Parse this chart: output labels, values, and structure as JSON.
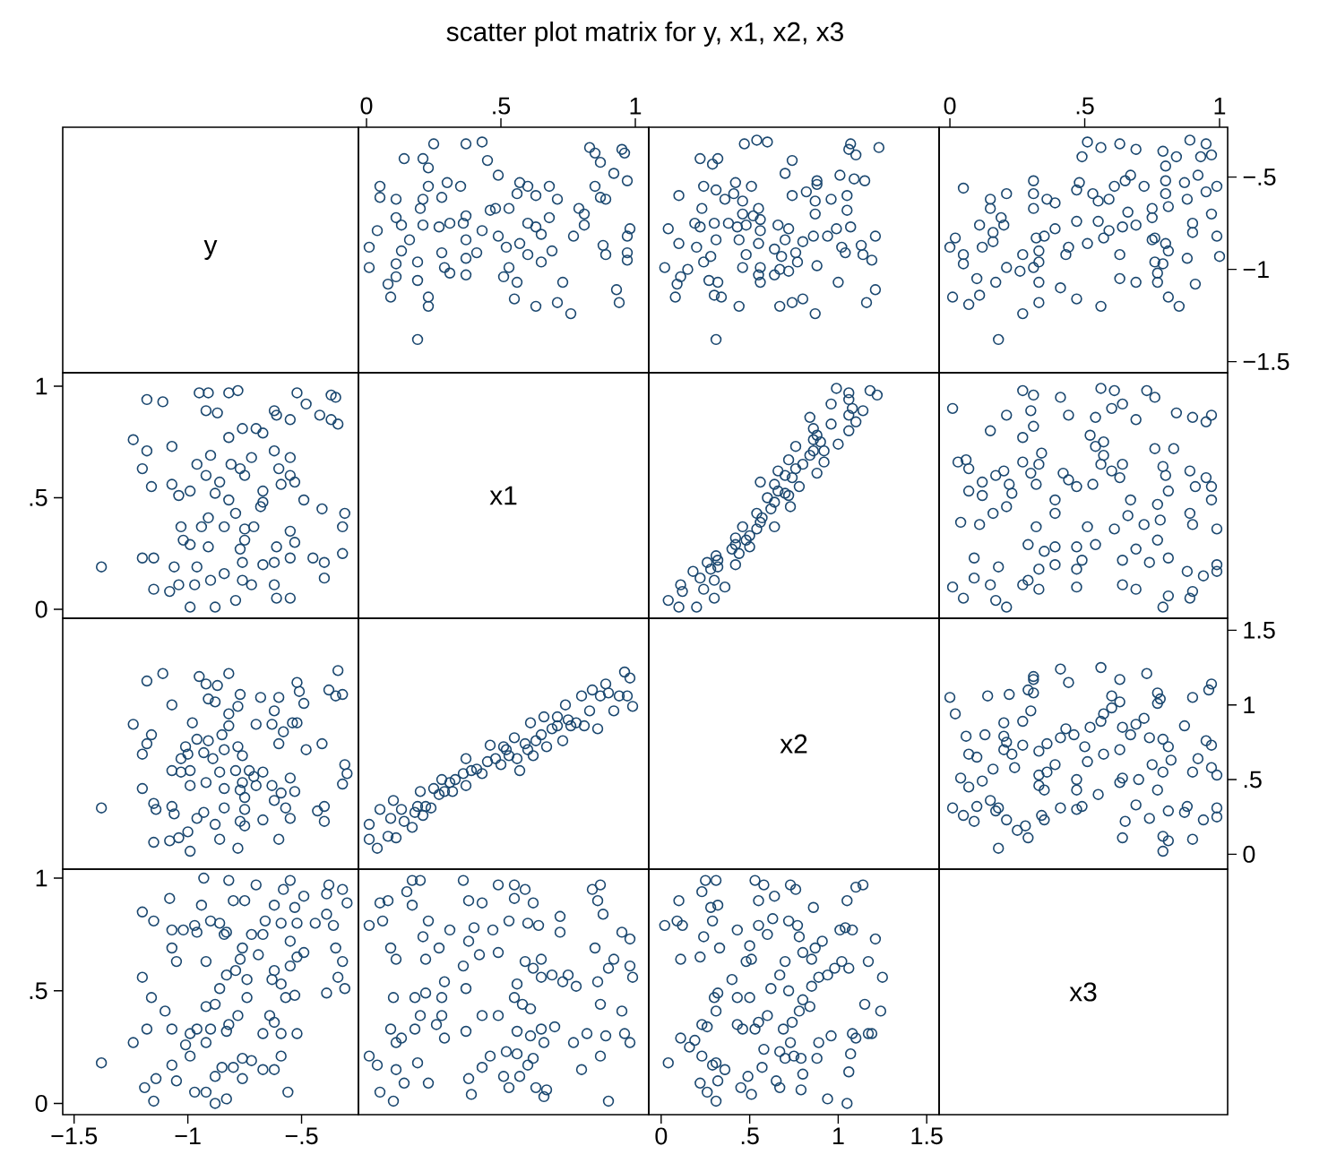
{
  "chart_data": [
    {
      "type": "other",
      "title": "scatter plot matrix for y, x1, x2, x3",
      "annotations": [
        "y"
      ]
    },
    {
      "type": "scatter",
      "marker": "circle",
      "color": "#1a476f",
      "xlim": [
        -0.03,
        1.05
      ],
      "ylim": [
        -1.56,
        -0.23
      ],
      "xticks": [
        0,
        {
          "value": 0.5,
          "label": ".5"
        },
        1
      ],
      "tick_labels": "x",
      "x": [
        0.19,
        0.23,
        0.23,
        0.94,
        0.93,
        0.76,
        0.71,
        0.63,
        0.55,
        0.73,
        0.56,
        0.51,
        0.53,
        0.37,
        0.31,
        0.29,
        0.19,
        0.09,
        0.08,
        0.11,
        0.01,
        0.97,
        0.97,
        0.89,
        0.88,
        0.97,
        0.98,
        0.77,
        0.81,
        0.69,
        0.65,
        0.6,
        0.57,
        0.52,
        0.49,
        0.41,
        0.37,
        0.37,
        0.43,
        0.28,
        0.19,
        0.11,
        0.13,
        0.16,
        0.01,
        0.04,
        0.13,
        0.65,
        0.63,
        0.6,
        0.68,
        0.81,
        0.79,
        0.36,
        0.37,
        0.31,
        0.27,
        0.21,
        0.11,
        0.2,
        0.21,
        0.48,
        0.46,
        0.53,
        0.71,
        0.89,
        0.87,
        0.85,
        0.97,
        0.92,
        0.63,
        0.6,
        0.57,
        0.68,
        0.56,
        0.49,
        0.35,
        0.3,
        0.28,
        0.23,
        0.11,
        0.05,
        0.05,
        0.45,
        0.23,
        0.21,
        0.14,
        0.25,
        0.43,
        0.37,
        0.96,
        0.95,
        0.87,
        0.85,
        0.83
      ],
      "values": [
        -1.38,
        -1.2,
        -1.15,
        -1.18,
        -1.11,
        -1.24,
        -1.18,
        -1.2,
        -1.16,
        -1.07,
        -1.07,
        -1.04,
        -0.99,
        -1.03,
        -1.02,
        -0.99,
        -1.06,
        -1.15,
        -1.08,
        -1.04,
        -0.99,
        -0.95,
        -0.91,
        -0.92,
        -0.87,
        -0.82,
        -0.78,
        -0.82,
        -0.76,
        -0.9,
        -0.96,
        -0.92,
        -0.86,
        -0.88,
        -0.82,
        -0.91,
        -0.94,
        -0.84,
        -0.79,
        -0.91,
        -0.96,
        -0.97,
        -0.9,
        -0.84,
        -0.88,
        -0.79,
        -0.76,
        -0.81,
        -0.77,
        -0.75,
        -0.72,
        -0.7,
        -0.67,
        -0.75,
        -0.71,
        -0.75,
        -0.77,
        -0.76,
        -0.72,
        -0.67,
        -0.62,
        -0.67,
        -0.68,
        -0.67,
        -0.62,
        -0.62,
        -0.61,
        -0.55,
        -0.52,
        -0.48,
        -0.6,
        -0.55,
        -0.53,
        -0.55,
        -0.59,
        -0.49,
        -0.55,
        -0.53,
        -0.61,
        -0.55,
        -0.62,
        -0.61,
        -0.55,
        -0.41,
        -0.45,
        -0.4,
        -0.4,
        -0.32,
        -0.31,
        -0.32,
        -0.37,
        -0.35,
        -0.42,
        -0.37,
        -0.34
      ]
    },
    {
      "type": "scatter",
      "marker": "circle",
      "color": "#1a476f",
      "xlim": [
        -0.07,
        1.57
      ],
      "ylim": [
        -1.56,
        -0.23
      ],
      "tick_labels": false,
      "x": [
        0.31,
        1.16,
        1.21,
        1.0,
        0.87,
        0.8,
        0.74,
        0.67,
        0.44,
        0.34,
        0.3,
        0.32,
        0.27,
        0.08,
        0.09,
        0.11,
        0.02,
        0.15,
        0.88,
        1.19,
        1.14,
        1.13,
        1.04,
        1.02,
        1.21,
        1.07,
        0.99,
        0.94,
        0.86,
        0.8,
        0.76,
        0.77,
        0.72,
        0.67,
        0.64,
        0.56,
        0.55,
        0.56,
        0.68,
        0.64,
        0.7,
        0.72,
        0.66,
        0.56,
        0.55,
        0.48,
        0.46,
        0.44,
        0.48,
        0.56,
        0.52,
        0.43,
        0.38,
        0.55,
        0.46,
        0.46,
        0.41,
        0.51,
        0.42,
        0.36,
        0.31,
        0.24,
        0.23,
        0.3,
        0.31,
        0.19,
        0.22,
        0.2,
        0.24,
        0.28,
        0.1,
        0.04,
        0.1,
        1.05,
        1.05,
        0.96,
        0.87,
        0.87,
        0.74,
        0.88,
        0.88,
        0.82,
        1.15,
        1.09,
        1.01,
        0.74,
        0.7,
        1.1,
        1.23,
        1.06,
        1.07,
        0.6,
        0.54,
        0.47,
        0.29,
        0.32,
        0.22
      ],
      "values": [
        -1.38,
        -1.18,
        -1.11,
        -1.07,
        -1.24,
        -1.16,
        -1.18,
        -1.2,
        -1.2,
        -1.15,
        -1.14,
        -1.07,
        -1.06,
        -1.15,
        -1.08,
        -1.04,
        -0.99,
        -1.0,
        -0.98,
        -0.95,
        -0.92,
        -0.87,
        -0.91,
        -0.88,
        -0.82,
        -0.77,
        -0.78,
        -0.82,
        -0.82,
        -0.85,
        -0.91,
        -0.96,
        -1.01,
        -1.0,
        -1.03,
        -1.07,
        -1.03,
        -0.99,
        -0.93,
        -0.89,
        -0.84,
        -0.78,
        -0.76,
        -0.79,
        -0.86,
        -0.92,
        -0.99,
        -0.84,
        -0.76,
        -0.73,
        -0.71,
        -0.77,
        -0.75,
        -0.67,
        -0.7,
        -0.63,
        -0.59,
        -0.55,
        -0.53,
        -0.62,
        -0.57,
        -0.55,
        -0.67,
        -0.75,
        -0.84,
        -0.75,
        -0.77,
        -0.88,
        -0.96,
        -0.93,
        -0.86,
        -0.78,
        -0.6,
        -0.68,
        -0.6,
        -0.62,
        -0.63,
        -0.7,
        -0.6,
        -0.54,
        -0.52,
        -0.58,
        -0.52,
        -0.51,
        -0.49,
        -0.41,
        -0.48,
        -0.38,
        -0.34,
        -0.35,
        -0.32,
        -0.31,
        -0.3,
        -0.32,
        -0.43,
        -0.4,
        -0.4
      ]
    },
    {
      "type": "scatter",
      "marker": "circle",
      "color": "#1a476f",
      "xlim": [
        -0.04,
        1.03
      ],
      "ylim": [
        -1.56,
        -0.23
      ],
      "xticks": [
        0,
        {
          "value": 0.5,
          "label": ".5"
        },
        1
      ],
      "yticks": [
        {
          "value": -1.5,
          "label": "−1.5"
        },
        {
          "value": -1,
          "label": "−1"
        },
        {
          "value": -0.5,
          "label": "−.5"
        }
      ],
      "x": [
        0.18,
        0.85,
        0.81,
        0.91,
        0.77,
        0.69,
        0.63,
        0.77,
        0.79,
        1.0,
        0.88,
        0.81,
        0.76,
        0.63,
        0.99,
        0.9,
        0.9,
        0.97,
        0.8,
        0.76,
        0.75,
        0.69,
        0.75,
        0.75,
        0.81,
        0.66,
        0.64,
        0.59,
        0.57,
        0.51,
        0.55,
        0.47,
        0.39,
        0.35,
        0.32,
        0.44,
        0.43,
        0.33,
        0.31,
        0.26,
        0.21,
        0.27,
        0.33,
        0.33,
        0.41,
        0.47,
        0.56,
        0.27,
        0.33,
        0.17,
        0.1,
        0.07,
        0.01,
        0.11,
        0.05,
        0.05,
        0.0,
        0.02,
        0.12,
        0.16,
        0.16,
        0.2,
        0.11,
        0.19,
        0.31,
        0.39,
        0.36,
        0.31,
        0.21,
        0.15,
        0.15,
        0.05,
        0.31,
        0.55,
        0.53,
        0.47,
        0.48,
        0.61,
        0.65,
        0.67,
        0.59,
        0.88,
        0.95,
        0.99,
        0.87,
        0.8,
        0.8,
        0.72,
        0.92,
        0.8,
        0.84,
        0.97,
        0.93,
        0.95,
        0.89,
        0.79,
        0.69,
        0.63,
        0.56,
        0.51,
        0.49
      ],
      "values": [
        -1.38,
        -1.2,
        -1.15,
        -1.08,
        -1.07,
        -1.07,
        -1.05,
        -1.02,
        -0.97,
        -0.93,
        -0.94,
        -0.9,
        -0.96,
        -0.92,
        -0.82,
        -0.8,
        -0.75,
        -0.7,
        -0.86,
        -0.83,
        -0.84,
        -0.76,
        -0.72,
        -0.67,
        -0.66,
        -0.69,
        -0.77,
        -0.79,
        -0.83,
        -0.86,
        -0.74,
        -0.74,
        -0.78,
        -0.82,
        -0.83,
        -0.88,
        -0.92,
        -0.96,
        -0.99,
        -1.01,
        -0.99,
        -0.92,
        -0.9,
        -1.07,
        -1.1,
        -1.16,
        -1.2,
        -1.24,
        -1.18,
        -1.07,
        -1.05,
        -1.19,
        -1.15,
        -1.14,
        -0.97,
        -0.92,
        -0.88,
        -0.83,
        -0.88,
        -0.85,
        -0.8,
        -0.76,
        -0.76,
        -0.72,
        -0.67,
        -0.64,
        -0.62,
        -0.59,
        -0.59,
        -0.67,
        -0.62,
        -0.56,
        -0.52,
        -0.63,
        -0.59,
        -0.57,
        -0.53,
        -0.55,
        -0.52,
        -0.49,
        -0.62,
        -0.62,
        -0.58,
        -0.55,
        -0.53,
        -0.59,
        -0.52,
        -0.55,
        -0.49,
        -0.44,
        -0.39,
        -0.38,
        -0.39,
        -0.32,
        -0.3,
        -0.36,
        -0.35,
        -0.32,
        -0.34,
        -0.31,
        -0.39
      ]
    },
    {
      "type": "scatter",
      "marker": "circle",
      "color": "#1a476f",
      "xlim": [
        -1.55,
        -0.25
      ],
      "ylim": [
        -0.04,
        1.06
      ],
      "yticks": [
        0,
        {
          "value": 0.5,
          "label": ".5"
        },
        1
      ],
      "tick_labels": "y",
      "x": [
        -1.38,
        -1.2,
        -1.15,
        -1.18,
        -1.11,
        -1.24,
        -1.18,
        -1.2,
        -1.16,
        -1.07,
        -1.07,
        -1.04,
        -0.99,
        -1.03,
        -1.02,
        -0.99,
        -1.06,
        -1.15,
        -1.08,
        -1.04,
        -0.99,
        -0.95,
        -0.91,
        -0.92,
        -0.87,
        -0.82,
        -0.78,
        -0.82,
        -0.76,
        -0.9,
        -0.96,
        -0.92,
        -0.86,
        -0.88,
        -0.82,
        -0.91,
        -0.94,
        -0.84,
        -0.79,
        -0.91,
        -0.96,
        -0.97,
        -0.9,
        -0.84,
        -0.88,
        -0.79,
        -0.76,
        -0.81,
        -0.77,
        -0.75,
        -0.72,
        -0.7,
        -0.67,
        -0.75,
        -0.71,
        -0.75,
        -0.77,
        -0.76,
        -0.72,
        -0.67,
        -0.62,
        -0.67,
        -0.68,
        -0.67,
        -0.62,
        -0.62,
        -0.61,
        -0.55,
        -0.52,
        -0.48,
        -0.6,
        -0.55,
        -0.53,
        -0.55,
        -0.59,
        -0.49,
        -0.55,
        -0.53,
        -0.61,
        -0.55,
        -0.62,
        -0.61,
        -0.55,
        -0.41,
        -0.45,
        -0.4,
        -0.4,
        -0.32,
        -0.31,
        -0.32,
        -0.37,
        -0.35,
        -0.42,
        -0.37,
        -0.34
      ],
      "values": [
        0.19,
        0.23,
        0.23,
        0.94,
        0.93,
        0.76,
        0.71,
        0.63,
        0.55,
        0.73,
        0.56,
        0.51,
        0.53,
        0.37,
        0.31,
        0.29,
        0.19,
        0.09,
        0.08,
        0.11,
        0.01,
        0.97,
        0.97,
        0.89,
        0.88,
        0.97,
        0.98,
        0.77,
        0.81,
        0.69,
        0.65,
        0.6,
        0.57,
        0.52,
        0.49,
        0.41,
        0.37,
        0.37,
        0.43,
        0.28,
        0.19,
        0.11,
        0.13,
        0.16,
        0.01,
        0.04,
        0.13,
        0.65,
        0.63,
        0.6,
        0.68,
        0.81,
        0.79,
        0.36,
        0.37,
        0.31,
        0.27,
        0.21,
        0.11,
        0.2,
        0.21,
        0.48,
        0.46,
        0.53,
        0.71,
        0.89,
        0.87,
        0.85,
        0.97,
        0.92,
        0.63,
        0.6,
        0.57,
        0.68,
        0.56,
        0.49,
        0.35,
        0.3,
        0.28,
        0.23,
        0.11,
        0.05,
        0.05,
        0.45,
        0.23,
        0.21,
        0.14,
        0.25,
        0.43,
        0.37,
        0.96,
        0.95,
        0.87,
        0.85,
        0.83
      ]
    },
    {
      "type": "other",
      "annotations": [
        "x1"
      ]
    },
    {
      "type": "scatter",
      "marker": "circle",
      "color": "#1a476f",
      "xlim": [
        -0.07,
        1.57
      ],
      "ylim": [
        -0.04,
        1.06
      ],
      "tick_labels": false,
      "x": [
        0.1,
        0.2,
        0.04,
        0.3,
        0.24,
        0.36,
        0.11,
        0.22,
        0.28,
        0.26,
        0.32,
        0.42,
        0.44,
        0.5,
        0.42,
        0.48,
        0.54,
        0.64,
        0.46,
        0.57,
        0.54,
        0.73,
        0.64,
        0.6,
        0.7,
        0.78,
        0.64,
        0.56,
        0.74,
        0.88,
        0.66,
        0.8,
        0.92,
        0.72,
        0.86,
        0.76,
        1.0,
        0.86,
        0.88,
        0.86,
        1.06,
        1.1,
        0.84,
        1.06,
        1.14,
        0.96,
        1.06,
        1.22,
        1.18,
        0.99,
        1.06,
        0.72,
        0.7,
        0.31,
        0.18,
        0.12,
        0.42,
        0.56,
        0.84,
        0.92,
        0.3,
        0.32,
        0.4,
        0.5,
        0.62,
        0.66,
        0.76,
        0.9,
        0.96,
        1.08
      ],
      "values": [
        0.01,
        0.01,
        0.04,
        0.05,
        0.09,
        0.1,
        0.11,
        0.14,
        0.18,
        0.21,
        0.22,
        0.2,
        0.25,
        0.28,
        0.29,
        0.31,
        0.36,
        0.37,
        0.37,
        0.41,
        0.43,
        0.46,
        0.48,
        0.5,
        0.52,
        0.55,
        0.56,
        0.57,
        0.59,
        0.61,
        0.62,
        0.65,
        0.66,
        0.67,
        0.71,
        0.73,
        0.74,
        0.76,
        0.78,
        0.81,
        0.8,
        0.84,
        0.86,
        0.87,
        0.89,
        0.92,
        0.94,
        0.96,
        0.98,
        0.99,
        0.97,
        0.51,
        0.6,
        0.24,
        0.17,
        0.08,
        0.32,
        0.39,
        0.69,
        0.71,
        0.13,
        0.19,
        0.27,
        0.33,
        0.45,
        0.53,
        0.63,
        0.75,
        0.83,
        0.9
      ]
    },
    {
      "type": "scatter",
      "marker": "circle",
      "color": "#1a476f",
      "xlim": [
        -0.04,
        1.03
      ],
      "ylim": [
        -0.04,
        1.06
      ],
      "tick_labels": false,
      "x": [
        0.79,
        0.81,
        0.89,
        0.9,
        0.99,
        0.99,
        0.94,
        0.88,
        0.81,
        0.99,
        0.9,
        0.89,
        0.97,
        0.97,
        0.95,
        0.91,
        0.89,
        0.8,
        0.79,
        0.83,
        0.76,
        0.95,
        0.97,
        0.9,
        0.84,
        0.76,
        0.73,
        0.69,
        0.69,
        0.64,
        0.74,
        0.69,
        0.64,
        0.77,
        0.72,
        0.66,
        0.78,
        0.77,
        0.81,
        0.67,
        0.61,
        0.54,
        0.51,
        0.47,
        0.47,
        0.49,
        0.47,
        0.39,
        0.39,
        0.35,
        0.32,
        0.39,
        0.39,
        0.29,
        0.33,
        0.29,
        0.33,
        0.27,
        0.21,
        0.17,
        0.15,
        0.18,
        0.09,
        0.09,
        0.05,
        0.01,
        0.11,
        0.04,
        0.16,
        0.21,
        0.23,
        0.22,
        0.12,
        0.07,
        0.12,
        0.17,
        0.2,
        0.07,
        0.03,
        0.06,
        0.32,
        0.3,
        0.33,
        0.34,
        0.27,
        0.47,
        0.44,
        0.42,
        0.53,
        0.63,
        0.6,
        0.56,
        0.64,
        0.57,
        0.54,
        0.57,
        0.52,
        0.54,
        0.6,
        0.64,
        0.61,
        0.56,
        0.44,
        0.41,
        0.3,
        0.31,
        0.27,
        0.31,
        0.27,
        0.15,
        0.21,
        0.01
      ],
      "values": [
        0.01,
        0.06,
        0.05,
        0.08,
        0.17,
        0.2,
        0.15,
        0.17,
        0.23,
        0.36,
        0.38,
        0.43,
        0.49,
        0.55,
        0.59,
        0.55,
        0.62,
        0.6,
        0.64,
        0.72,
        0.72,
        0.84,
        0.87,
        0.86,
        0.88,
        0.95,
        0.98,
        0.85,
        0.09,
        0.11,
        0.21,
        0.27,
        0.22,
        0.31,
        0.38,
        0.42,
        0.4,
        0.47,
        0.53,
        0.49,
        0.36,
        0.29,
        0.37,
        0.1,
        0.18,
        0.22,
        0.28,
        0.2,
        0.28,
        0.26,
        0.37,
        0.43,
        0.49,
        0.29,
        0.09,
        0.13,
        0.18,
        0.11,
        0.01,
        0.04,
        0.11,
        0.19,
        0.23,
        0.14,
        0.05,
        0.1,
        0.38,
        0.39,
        0.43,
        0.46,
        0.52,
        0.56,
        0.51,
        0.53,
        0.57,
        0.6,
        0.62,
        0.63,
        0.66,
        0.67,
        0.56,
        0.61,
        0.65,
        0.7,
        0.66,
        0.55,
        0.58,
        0.61,
        0.56,
        0.59,
        0.62,
        0.65,
        0.65,
        0.69,
        0.73,
        0.75,
        0.78,
        0.86,
        0.9,
        0.92,
        0.98,
        0.99,
        0.87,
        0.95,
        0.89,
        0.96,
        0.98,
        0.82,
        0.77,
        0.8,
        0.87,
        0.9
      ]
    },
    {
      "type": "scatter",
      "marker": "circle",
      "color": "#1a476f",
      "xlim": [
        -1.55,
        -0.25
      ],
      "ylim": [
        -0.1,
        1.58
      ],
      "tick_labels": false,
      "x": [
        -1.38,
        -1.18,
        -1.11,
        -1.07,
        -1.24,
        -1.16,
        -1.18,
        -1.2,
        -1.2,
        -1.15,
        -1.14,
        -1.07,
        -1.06,
        -1.15,
        -1.08,
        -1.04,
        -0.99,
        -1.0,
        -0.98,
        -0.95,
        -0.92,
        -0.87,
        -0.91,
        -0.88,
        -0.82,
        -0.77,
        -0.78,
        -0.82,
        -0.82,
        -0.85,
        -0.91,
        -0.96,
        -1.01,
        -1.0,
        -1.03,
        -1.07,
        -1.03,
        -0.99,
        -0.93,
        -0.89,
        -0.84,
        -0.78,
        -0.76,
        -0.79,
        -0.86,
        -0.92,
        -0.99,
        -0.84,
        -0.76,
        -0.73,
        -0.71,
        -0.77,
        -0.75,
        -0.67,
        -0.7,
        -0.63,
        -0.59,
        -0.55,
        -0.53,
        -0.62,
        -0.57,
        -0.55,
        -0.67,
        -0.75,
        -0.84,
        -0.75,
        -0.77,
        -0.88,
        -0.96,
        -0.93,
        -0.86,
        -0.78,
        -0.6,
        -0.68,
        -0.6,
        -0.62,
        -0.63,
        -0.7,
        -0.6,
        -0.54,
        -0.52,
        -0.58,
        -0.52,
        -0.51,
        -0.49,
        -0.41,
        -0.48,
        -0.38,
        -0.34,
        -0.35,
        -0.32,
        -0.31,
        -0.3,
        -0.32,
        -0.43,
        -0.4,
        -0.4
      ],
      "values": [
        0.31,
        1.16,
        1.21,
        1.0,
        0.87,
        0.8,
        0.74,
        0.67,
        0.44,
        0.34,
        0.3,
        0.32,
        0.27,
        0.08,
        0.09,
        0.11,
        0.02,
        0.15,
        0.88,
        1.19,
        1.14,
        1.13,
        1.04,
        1.02,
        1.21,
        1.07,
        0.99,
        0.94,
        0.86,
        0.8,
        0.76,
        0.77,
        0.72,
        0.67,
        0.64,
        0.56,
        0.55,
        0.56,
        0.68,
        0.64,
        0.7,
        0.72,
        0.66,
        0.56,
        0.55,
        0.48,
        0.46,
        0.44,
        0.48,
        0.56,
        0.52,
        0.43,
        0.38,
        0.55,
        0.46,
        0.46,
        0.41,
        0.51,
        0.42,
        0.36,
        0.31,
        0.24,
        0.23,
        0.3,
        0.31,
        0.19,
        0.22,
        0.2,
        0.24,
        0.28,
        0.1,
        0.04,
        0.1,
        1.05,
        1.05,
        0.96,
        0.87,
        0.87,
        0.74,
        0.88,
        0.88,
        0.82,
        1.15,
        1.09,
        1.01,
        0.74,
        0.7,
        1.1,
        1.23,
        1.06,
        1.07,
        0.6,
        0.54,
        0.47,
        0.29,
        0.32,
        0.22
      ]
    },
    {
      "type": "scatter",
      "marker": "circle",
      "color": "#1a476f",
      "xlim": [
        -0.03,
        1.05
      ],
      "ylim": [
        -0.1,
        1.58
      ],
      "tick_labels": false,
      "x": [
        0.01,
        0.01,
        0.04,
        0.05,
        0.09,
        0.1,
        0.11,
        0.14,
        0.18,
        0.21,
        0.22,
        0.2,
        0.25,
        0.28,
        0.29,
        0.31,
        0.36,
        0.37,
        0.37,
        0.41,
        0.43,
        0.46,
        0.48,
        0.5,
        0.52,
        0.55,
        0.56,
        0.57,
        0.59,
        0.61,
        0.62,
        0.65,
        0.66,
        0.67,
        0.71,
        0.73,
        0.74,
        0.76,
        0.78,
        0.81,
        0.8,
        0.84,
        0.86,
        0.87,
        0.89,
        0.92,
        0.94,
        0.96,
        0.98,
        0.99,
        0.97,
        0.51,
        0.6,
        0.24,
        0.17,
        0.08,
        0.32,
        0.39,
        0.69,
        0.71,
        0.13,
        0.19,
        0.27,
        0.33,
        0.45,
        0.53,
        0.63,
        0.75,
        0.83,
        0.9
      ],
      "values": [
        0.1,
        0.2,
        0.04,
        0.3,
        0.24,
        0.36,
        0.11,
        0.22,
        0.28,
        0.26,
        0.32,
        0.42,
        0.44,
        0.5,
        0.42,
        0.48,
        0.54,
        0.64,
        0.46,
        0.57,
        0.54,
        0.73,
        0.64,
        0.6,
        0.7,
        0.78,
        0.64,
        0.56,
        0.74,
        0.88,
        0.66,
        0.8,
        0.92,
        0.72,
        0.86,
        0.76,
        1.0,
        0.86,
        0.88,
        0.86,
        1.06,
        1.1,
        0.84,
        1.06,
        1.14,
        0.96,
        1.06,
        1.22,
        1.18,
        0.99,
        1.06,
        0.72,
        0.7,
        0.31,
        0.18,
        0.12,
        0.42,
        0.56,
        0.84,
        0.92,
        0.3,
        0.32,
        0.4,
        0.5,
        0.62,
        0.66,
        0.76,
        0.9,
        0.96,
        1.08
      ]
    },
    {
      "type": "other",
      "annotations": [
        "x2"
      ]
    },
    {
      "type": "scatter",
      "marker": "circle",
      "color": "#1a476f",
      "xlim": [
        -0.04,
        1.03
      ],
      "ylim": [
        -0.1,
        1.58
      ],
      "yticks": [
        0,
        {
          "value": 0.5,
          "label": ".5"
        },
        1,
        1.5
      ],
      "tick_labels": "y",
      "x": [
        0.18,
        0.79,
        0.81,
        0.79,
        0.9,
        0.64,
        0.65,
        0.94,
        0.99,
        0.99,
        0.87,
        0.88,
        0.81,
        0.74,
        0.69,
        0.99,
        0.97,
        0.9,
        0.92,
        0.97,
        0.95,
        0.82,
        0.81,
        0.79,
        0.87,
        0.74,
        0.75,
        0.79,
        0.77,
        0.7,
        0.63,
        0.64,
        0.55,
        0.49,
        0.47,
        0.47,
        0.47,
        0.51,
        0.57,
        0.63,
        0.67,
        0.64,
        0.69,
        0.72,
        0.52,
        0.56,
        0.57,
        0.6,
        0.63,
        0.6,
        0.77,
        0.78,
        0.77,
        0.9,
        0.96,
        0.97,
        0.73,
        0.63,
        0.56,
        0.44,
        0.41,
        0.5,
        0.46,
        0.41,
        0.33,
        0.36,
        0.43,
        0.39,
        0.36,
        0.33,
        0.35,
        0.33,
        0.41,
        0.34,
        0.35,
        0.28,
        0.29,
        0.25,
        0.21,
        0.17,
        0.18,
        0.1,
        0.15,
        0.09,
        0.05,
        0.01,
        0.07,
        0.12,
        0.04,
        0.16,
        0.24,
        0.23,
        0.2,
        0.21,
        0.2,
        0.27,
        0.13,
        0.06,
        0.1,
        0.07,
        0.27,
        0.3,
        0.2,
        0.14,
        0.22,
        0.31,
        0.31,
        0.31,
        0.29,
        0.02,
        0.0
      ],
      "values": [
        0.04,
        0.02,
        0.09,
        0.12,
        0.1,
        0.11,
        0.22,
        0.23,
        0.25,
        0.31,
        0.28,
        0.32,
        0.29,
        0.24,
        0.33,
        0.53,
        0.58,
        0.55,
        0.64,
        0.73,
        0.76,
        0.63,
        0.72,
        0.77,
        0.86,
        0.78,
        0.6,
        0.55,
        0.43,
        0.5,
        0.48,
        0.51,
        0.4,
        0.32,
        0.3,
        0.43,
        0.5,
        0.62,
        0.67,
        0.7,
        0.8,
        0.85,
        0.87,
        0.91,
        0.85,
        0.89,
        0.94,
        0.98,
        1.02,
        1.06,
        1.01,
        1.04,
        1.08,
        1.05,
        1.1,
        1.14,
        1.21,
        1.17,
        1.25,
        1.15,
        1.24,
        0.72,
        0.8,
        0.78,
        0.69,
        0.74,
        0.84,
        0.6,
        0.55,
        0.53,
        0.43,
        0.46,
        0.31,
        0.26,
        0.23,
        0.19,
        0.11,
        0.16,
        0.23,
        0.29,
        0.31,
        0.32,
        0.36,
        0.22,
        0.26,
        0.31,
        0.45,
        0.49,
        0.51,
        0.57,
        0.58,
        0.67,
        0.7,
        0.75,
        0.79,
        0.73,
        0.8,
        0.79,
        0.65,
        0.67,
        0.89,
        0.96,
        0.88,
        1.06,
        1.07,
        1.08,
        1.17,
        1.19,
        1.1,
        0.94,
        1.05
      ]
    },
    {
      "type": "scatter",
      "marker": "circle",
      "color": "#1a476f",
      "xlim": [
        -1.55,
        -0.25
      ],
      "ylim": [
        -0.05,
        1.04
      ],
      "xticks": [
        {
          "value": -1.5,
          "label": "−1.5"
        },
        {
          "value": -1,
          "label": "−1"
        },
        {
          "value": -0.5,
          "label": "−.5"
        }
      ],
      "yticks": [
        0,
        {
          "value": 0.5,
          "label": ".5"
        },
        1
      ],
      "x": [
        -1.38,
        -1.2,
        -1.15,
        -1.08,
        -1.07,
        -1.07,
        -1.05,
        -1.02,
        -0.97,
        -0.93,
        -0.94,
        -0.9,
        -0.96,
        -0.92,
        -0.82,
        -0.8,
        -0.75,
        -0.7,
        -0.86,
        -0.83,
        -0.84,
        -0.76,
        -0.72,
        -0.67,
        -0.66,
        -0.69,
        -0.77,
        -0.79,
        -0.83,
        -0.86,
        -0.74,
        -0.74,
        -0.78,
        -0.82,
        -0.83,
        -0.88,
        -0.92,
        -0.96,
        -0.99,
        -1.01,
        -0.99,
        -0.92,
        -0.9,
        -1.07,
        -1.1,
        -1.16,
        -1.2,
        -1.24,
        -1.18,
        -1.07,
        -1.05,
        -1.19,
        -1.15,
        -1.14,
        -0.97,
        -0.92,
        -0.88,
        -0.83,
        -0.88,
        -0.85,
        -0.8,
        -0.76,
        -0.76,
        -0.72,
        -0.67,
        -0.64,
        -0.62,
        -0.59,
        -0.59,
        -0.67,
        -0.62,
        -0.56,
        -0.52,
        -0.63,
        -0.59,
        -0.57,
        -0.53,
        -0.55,
        -0.52,
        -0.49,
        -0.62,
        -0.62,
        -0.58,
        -0.55,
        -0.53,
        -0.59,
        -0.52,
        -0.55,
        -0.49,
        -0.44,
        -0.39,
        -0.38,
        -0.39,
        -0.32,
        -0.3,
        -0.36,
        -0.35,
        -0.32,
        -0.34,
        -0.31,
        -0.39
      ],
      "values": [
        0.18,
        0.85,
        0.81,
        0.91,
        0.77,
        0.69,
        0.63,
        0.77,
        0.79,
        1.0,
        0.88,
        0.81,
        0.76,
        0.63,
        0.99,
        0.9,
        0.9,
        0.97,
        0.8,
        0.76,
        0.75,
        0.69,
        0.75,
        0.75,
        0.81,
        0.66,
        0.64,
        0.59,
        0.57,
        0.51,
        0.55,
        0.47,
        0.39,
        0.35,
        0.32,
        0.44,
        0.43,
        0.33,
        0.31,
        0.26,
        0.21,
        0.27,
        0.33,
        0.33,
        0.41,
        0.47,
        0.56,
        0.27,
        0.33,
        0.17,
        0.1,
        0.07,
        0.01,
        0.11,
        0.05,
        0.05,
        0.0,
        0.02,
        0.12,
        0.16,
        0.16,
        0.2,
        0.11,
        0.19,
        0.31,
        0.39,
        0.36,
        0.31,
        0.21,
        0.15,
        0.15,
        0.05,
        0.31,
        0.55,
        0.53,
        0.47,
        0.48,
        0.61,
        0.65,
        0.67,
        0.59,
        0.88,
        0.95,
        0.99,
        0.87,
        0.8,
        0.8,
        0.72,
        0.92,
        0.8,
        0.84,
        0.97,
        0.93,
        0.95,
        0.89,
        0.79,
        0.69,
        0.63,
        0.56,
        0.51,
        0.49
      ]
    },
    {
      "type": "scatter",
      "marker": "circle",
      "color": "#1a476f",
      "xlim": [
        -0.03,
        1.05
      ],
      "ylim": [
        -0.05,
        1.04
      ],
      "tick_labels": false,
      "x": [
        0.01,
        0.06,
        0.05,
        0.08,
        0.17,
        0.2,
        0.15,
        0.17,
        0.23,
        0.36,
        0.38,
        0.43,
        0.49,
        0.55,
        0.59,
        0.55,
        0.62,
        0.6,
        0.64,
        0.72,
        0.72,
        0.84,
        0.87,
        0.86,
        0.88,
        0.95,
        0.98,
        0.85,
        0.09,
        0.11,
        0.21,
        0.27,
        0.22,
        0.31,
        0.38,
        0.42,
        0.4,
        0.47,
        0.53,
        0.49,
        0.36,
        0.29,
        0.37,
        0.1,
        0.18,
        0.22,
        0.28,
        0.2,
        0.28,
        0.26,
        0.37,
        0.43,
        0.49,
        0.29,
        0.09,
        0.13,
        0.18,
        0.11,
        0.01,
        0.04,
        0.11,
        0.19,
        0.23,
        0.14,
        0.05,
        0.1,
        0.38,
        0.39,
        0.43,
        0.46,
        0.52,
        0.56,
        0.51,
        0.53,
        0.57,
        0.6,
        0.62,
        0.63,
        0.66,
        0.67,
        0.56,
        0.61,
        0.65,
        0.7,
        0.66,
        0.55,
        0.58,
        0.61,
        0.56,
        0.59,
        0.62,
        0.65,
        0.65,
        0.69,
        0.73,
        0.75,
        0.78,
        0.86,
        0.9,
        0.92,
        0.98,
        0.99,
        0.87,
        0.95,
        0.89,
        0.96,
        0.98,
        0.82,
        0.77,
        0.8,
        0.87,
        0.9
      ],
      "values": [
        0.79,
        0.81,
        0.89,
        0.9,
        0.99,
        0.99,
        0.94,
        0.88,
        0.81,
        0.99,
        0.9,
        0.89,
        0.97,
        0.97,
        0.95,
        0.91,
        0.89,
        0.8,
        0.79,
        0.83,
        0.76,
        0.95,
        0.97,
        0.9,
        0.84,
        0.76,
        0.73,
        0.69,
        0.69,
        0.64,
        0.74,
        0.69,
        0.64,
        0.77,
        0.72,
        0.66,
        0.78,
        0.77,
        0.81,
        0.67,
        0.61,
        0.54,
        0.51,
        0.47,
        0.47,
        0.49,
        0.47,
        0.39,
        0.39,
        0.35,
        0.32,
        0.39,
        0.39,
        0.29,
        0.33,
        0.29,
        0.33,
        0.27,
        0.21,
        0.17,
        0.15,
        0.18,
        0.09,
        0.09,
        0.05,
        0.01,
        0.11,
        0.04,
        0.16,
        0.21,
        0.23,
        0.22,
        0.12,
        0.07,
        0.12,
        0.17,
        0.2,
        0.07,
        0.03,
        0.06,
        0.32,
        0.3,
        0.33,
        0.34,
        0.27,
        0.47,
        0.44,
        0.42,
        0.53,
        0.63,
        0.6,
        0.56,
        0.64,
        0.57,
        0.54,
        0.57,
        0.52,
        0.54,
        0.6,
        0.64,
        0.61,
        0.56,
        0.44,
        0.41,
        0.3,
        0.31,
        0.27,
        0.31,
        0.27,
        0.15,
        0.21,
        0.01
      ]
    },
    {
      "type": "scatter",
      "marker": "circle",
      "color": "#1a476f",
      "xlim": [
        -0.07,
        1.57
      ],
      "ylim": [
        -0.05,
        1.04
      ],
      "xticks": [
        0,
        {
          "value": 0.5,
          "label": ".5"
        },
        1,
        1.5
      ],
      "tick_labels": "x",
      "x": [
        0.04,
        0.02,
        0.09,
        0.12,
        0.1,
        0.11,
        0.22,
        0.23,
        0.25,
        0.31,
        0.28,
        0.32,
        0.29,
        0.24,
        0.33,
        0.53,
        0.58,
        0.55,
        0.64,
        0.73,
        0.76,
        0.63,
        0.72,
        0.77,
        0.86,
        0.78,
        0.6,
        0.55,
        0.43,
        0.5,
        0.48,
        0.51,
        0.4,
        0.32,
        0.3,
        0.43,
        0.5,
        0.62,
        0.67,
        0.7,
        0.8,
        0.85,
        0.87,
        0.91,
        0.85,
        0.89,
        0.94,
        0.98,
        1.02,
        1.06,
        1.01,
        1.04,
        1.08,
        1.05,
        1.1,
        1.14,
        1.21,
        1.17,
        1.25,
        1.15,
        1.24,
        0.72,
        0.8,
        0.78,
        0.69,
        0.74,
        0.84,
        0.6,
        0.55,
        0.53,
        0.43,
        0.46,
        0.31,
        0.26,
        0.23,
        0.19,
        0.11,
        0.16,
        0.23,
        0.29,
        0.31,
        0.32,
        0.36,
        0.22,
        0.26,
        0.31,
        0.45,
        0.49,
        0.51,
        0.57,
        0.58,
        0.67,
        0.7,
        0.75,
        0.79,
        0.73,
        0.8,
        0.79,
        0.65,
        0.67,
        0.89,
        0.96,
        0.88,
        1.06,
        1.07,
        1.08,
        1.17,
        1.19,
        1.1,
        0.94,
        1.05
      ],
      "values": [
        0.18,
        0.79,
        0.81,
        0.79,
        0.9,
        0.64,
        0.65,
        0.94,
        0.99,
        0.99,
        0.87,
        0.88,
        0.81,
        0.74,
        0.69,
        0.99,
        0.97,
        0.9,
        0.92,
        0.97,
        0.95,
        0.82,
        0.81,
        0.79,
        0.87,
        0.74,
        0.75,
        0.79,
        0.77,
        0.7,
        0.63,
        0.64,
        0.55,
        0.49,
        0.47,
        0.47,
        0.47,
        0.51,
        0.57,
        0.63,
        0.67,
        0.64,
        0.69,
        0.72,
        0.52,
        0.56,
        0.57,
        0.6,
        0.63,
        0.6,
        0.77,
        0.78,
        0.77,
        0.9,
        0.96,
        0.97,
        0.73,
        0.63,
        0.56,
        0.44,
        0.41,
        0.5,
        0.46,
        0.41,
        0.33,
        0.36,
        0.43,
        0.39,
        0.36,
        0.33,
        0.35,
        0.33,
        0.41,
        0.34,
        0.35,
        0.28,
        0.29,
        0.25,
        0.21,
        0.17,
        0.18,
        0.1,
        0.15,
        0.09,
        0.05,
        0.01,
        0.07,
        0.12,
        0.04,
        0.16,
        0.24,
        0.23,
        0.2,
        0.21,
        0.2,
        0.27,
        0.13,
        0.06,
        0.1,
        0.07,
        0.27,
        0.3,
        0.2,
        0.14,
        0.22,
        0.31,
        0.31,
        0.31,
        0.29,
        0.02,
        0.0
      ]
    },
    {
      "type": "other",
      "annotations": [
        "x3"
      ]
    }
  ]
}
